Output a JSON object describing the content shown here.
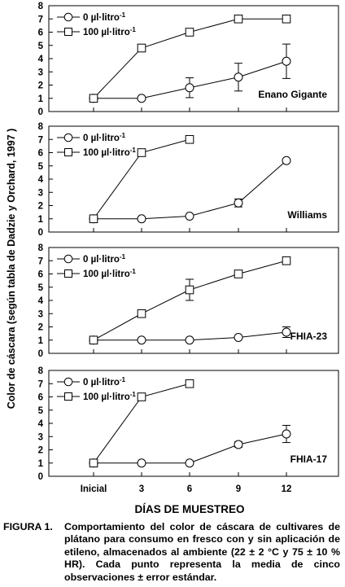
{
  "figure": {
    "y_axis_label": "Color de cáscara  (según tabla de Dadzie y Orchard, 1997 )",
    "x_axis_label": "DÍAS DE MUESTREO",
    "caption_label": "FIGURA 1.",
    "caption_text": "Comportamiento del color de cáscara de cultivares de plátano para consumo en fresco con y sin aplicación de etileno, almacenados al ambiente (22 ± 2 °C y 75 ± 10 % HR). Cada punto representa la media de cinco observaciones ± error estándar."
  },
  "legend": {
    "series0": "0 µl·litro",
    "series100": "100 µl·litro",
    "superscript": "-1"
  },
  "chart_data": [
    {
      "type": "line",
      "label": "Enano Gigante",
      "categories": [
        "Inicial",
        "3",
        "6",
        "9",
        "12"
      ],
      "ylim": [
        0,
        8
      ],
      "yticks": [
        0,
        1,
        2,
        3,
        4,
        5,
        6,
        7,
        8
      ],
      "grid": false,
      "legend_position": "top-left",
      "series": [
        {
          "name": "0 µl·litro-1",
          "marker": "circle",
          "values": [
            1,
            1,
            1.8,
            2.6,
            3.8
          ],
          "errors": [
            0,
            0,
            0.75,
            1.05,
            1.3
          ]
        },
        {
          "name": "100 µl·litro-1",
          "marker": "square",
          "values": [
            1,
            4.8,
            6,
            7,
            7
          ],
          "errors": [
            0,
            0,
            0,
            0,
            0
          ]
        }
      ]
    },
    {
      "type": "line",
      "label": "Williams",
      "categories": [
        "Inicial",
        "3",
        "6",
        "9",
        "12"
      ],
      "ylim": [
        0,
        8
      ],
      "yticks": [
        0,
        1,
        2,
        3,
        4,
        5,
        6,
        7,
        8
      ],
      "grid": false,
      "legend_position": "top-left",
      "series": [
        {
          "name": "0 µl·litro-1",
          "marker": "circle",
          "values": [
            1,
            1,
            1.2,
            2.2,
            5.4
          ],
          "errors": [
            0,
            0,
            0.1,
            0.3,
            0.1
          ]
        },
        {
          "name": "100 µl·litro-1",
          "marker": "square",
          "values": [
            1,
            6,
            7,
            null,
            null
          ],
          "errors": [
            0,
            0,
            0,
            0,
            0
          ]
        }
      ]
    },
    {
      "type": "line",
      "label": "FHIA-23",
      "categories": [
        "Inicial",
        "3",
        "6",
        "9",
        "12"
      ],
      "ylim": [
        0,
        8
      ],
      "yticks": [
        0,
        1,
        2,
        3,
        4,
        5,
        6,
        7,
        8
      ],
      "grid": false,
      "legend_position": "top-left",
      "series": [
        {
          "name": "0 µl·litro-1",
          "marker": "circle",
          "values": [
            1,
            1,
            1,
            1.2,
            1.6
          ],
          "errors": [
            0,
            0,
            0,
            0.1,
            0.4
          ]
        },
        {
          "name": "100 µl·litro-1",
          "marker": "square",
          "values": [
            1,
            3,
            4.8,
            6,
            7
          ],
          "errors": [
            0,
            0,
            0.8,
            0,
            0
          ]
        }
      ]
    },
    {
      "type": "line",
      "label": "FHIA-17",
      "categories": [
        "Inicial",
        "3",
        "6",
        "9",
        "12"
      ],
      "ylim": [
        0,
        8
      ],
      "yticks": [
        0,
        1,
        2,
        3,
        4,
        5,
        6,
        7,
        8
      ],
      "grid": false,
      "legend_position": "top-left",
      "series": [
        {
          "name": "0 µl·litro-1",
          "marker": "circle",
          "values": [
            1,
            1,
            1,
            2.4,
            3.2
          ],
          "errors": [
            0,
            0,
            0,
            0.2,
            0.65
          ]
        },
        {
          "name": "100 µl·litro-1",
          "marker": "square",
          "values": [
            1,
            6,
            7,
            null,
            null
          ],
          "errors": [
            0,
            0,
            0,
            0,
            0
          ]
        }
      ]
    }
  ]
}
